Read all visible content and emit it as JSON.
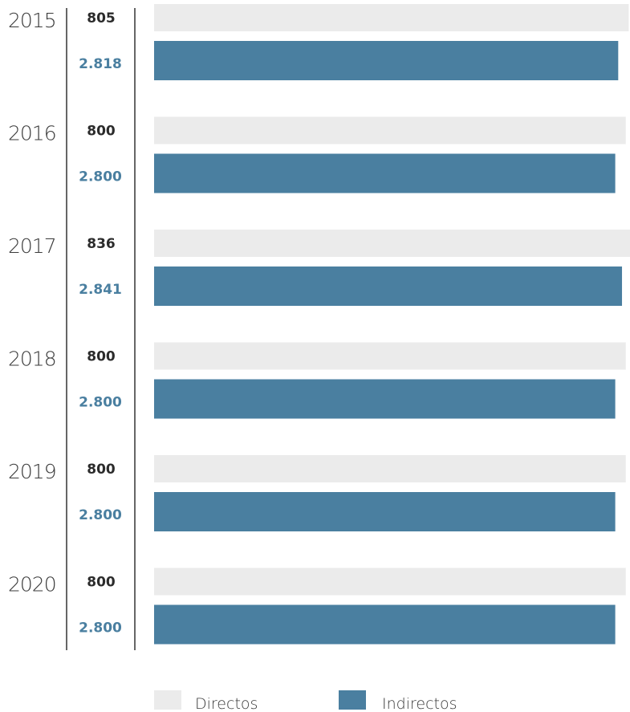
{
  "chart_data": {
    "type": "bar",
    "orientation": "horizontal",
    "categories": [
      "2015",
      "2016",
      "2017",
      "2018",
      "2019",
      "2020"
    ],
    "series": [
      {
        "name": "Directos",
        "values": [
          805,
          800,
          836,
          800,
          800,
          800
        ],
        "value_labels": [
          "805",
          "800",
          "836",
          "800",
          "800",
          "800"
        ],
        "color": "#ebebeb"
      },
      {
        "name": "Indirectos",
        "values": [
          2818,
          2800,
          2841,
          2800,
          2800,
          2800
        ],
        "value_labels": [
          "2.818",
          "2.800",
          "2.841",
          "2.800",
          "2.800",
          "2.800"
        ],
        "color": "#4a7fa0"
      }
    ],
    "xlim": [
      0,
      2841
    ],
    "legend": [
      "Directos",
      "Indirectos"
    ],
    "legend_position": "bottom",
    "grid": false
  }
}
